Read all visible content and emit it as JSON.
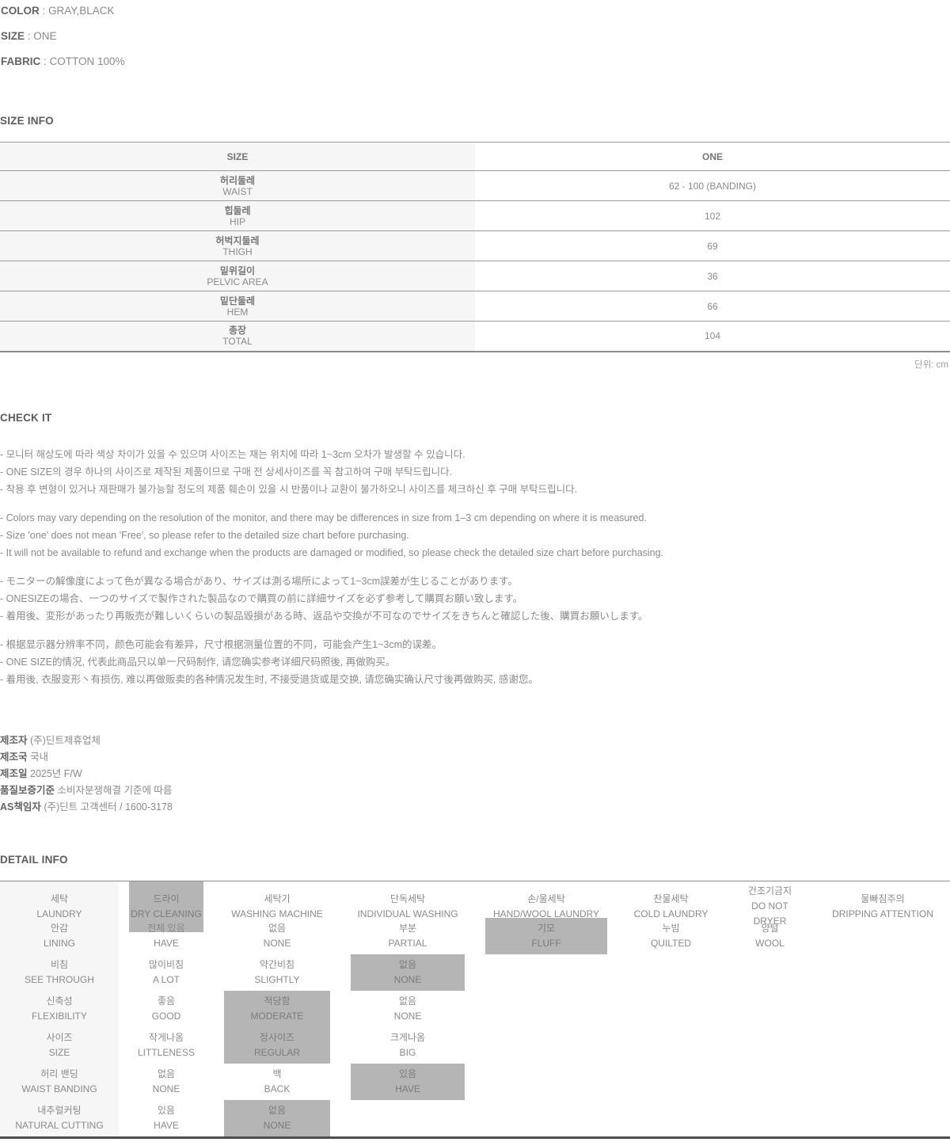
{
  "product": {
    "attributes": [
      {
        "label": "COLOR",
        "value": "GRAY,BLACK"
      },
      {
        "label": "SIZE",
        "value": "ONE"
      },
      {
        "label": "FABRIC",
        "value": "COTTON 100%"
      }
    ]
  },
  "size_info": {
    "heading": "SIZE INFO",
    "header": {
      "left": "SIZE",
      "right": "ONE"
    },
    "rows": [
      {
        "kr": "허리둘레",
        "en": "WAIST",
        "value": "62 - 100 (BANDING)"
      },
      {
        "kr": "힙둘레",
        "en": "HIP",
        "value": "102"
      },
      {
        "kr": "허벅지둘레",
        "en": "THIGH",
        "value": "69"
      },
      {
        "kr": "밑위길이",
        "en": "PELVIC AREA",
        "value": "36"
      },
      {
        "kr": "밑단둘레",
        "en": "HEM",
        "value": "66"
      },
      {
        "kr": "총장",
        "en": "TOTAL",
        "value": "104"
      }
    ],
    "unit_note": "단위: cm"
  },
  "check_it": {
    "heading": "CHECK IT",
    "blocks": [
      {
        "lines": [
          "- 모니터 해상도에 따라 색상 차이가 있을 수 있으며 사이즈는 재는 위치에 따라 1~3cm 오차가 발생할 수 있습니다.",
          "- ONE SIZE의 경우 하나의 사이즈로 제작된 제품이므로 구매 전 상세사이즈를 꼭 참고하여 구매 부탁드립니다.",
          "- 착용 후 변형이 있거나 재판매가 불가능할 정도의 제품 훼손이 있을 시 반품이나 교환이 불가하오니 사이즈를 체크하신 후 구매 부탁드립니다."
        ]
      },
      {
        "lines": [
          "- Colors may vary depending on the resolution of the monitor, and there may be differences in size from 1–3 cm depending on where it is measured.",
          "- Size 'one' does not mean 'Free', so please refer to the detailed size chart before purchasing.",
          "- It will not be available to refund and exchange when the products are damaged or modified, so please check the detailed size chart before purchasing."
        ]
      },
      {
        "lines": [
          "- モニターの解像度によって色が異なる場合があり、サイズは測る場所によって1~3cm誤差が生じることがあります。",
          "- ONESIZEの場合、一つのサイズで製作された製品なので購買の前に詳細サイズを必ず参考して購買お願い致します。",
          "- 着用後、変形があったり再販売が難しいくらいの製品毀損がある時、返品や交換が不可なのでサイズをきちんと確認した後、購買お願いします。"
        ]
      },
      {
        "lines": [
          "- 根据显示器分辨率不同，颜色可能会有差异，尺寸根据测量位置的不同，可能会产生1~3cm的误差。",
          "- ONE SIZE的情况, 代表此商品只以单一尺码制作, 请您确实参考详细尺码照後, 再做购买。",
          "- 着用後, 衣服变形丶有损伤, 难以再做贩卖的各种情况发生时, 不接受退货或是交换, 请您确实确认尺寸後再做购买, 感谢您。"
        ]
      }
    ]
  },
  "manufacturer": {
    "lines": [
      {
        "label": "제조자",
        "value": "(주)딘트제휴업체"
      },
      {
        "label": "제조국",
        "value": "국내"
      },
      {
        "label": "제조일",
        "value": "2025년 F/W"
      },
      {
        "label": "품질보증기준",
        "value": "소비자분쟁해결 기준에 따름"
      },
      {
        "label": "AS책임자",
        "value": "(주)딘트 고객센터 / 1600-3178"
      }
    ]
  },
  "detail_info": {
    "heading": "DETAIL INFO",
    "rows": [
      {
        "label_kr": "세탁",
        "label_en": "LAUNDRY",
        "options": [
          {
            "kr": "드라이",
            "en": "DRY CLEANING",
            "selected": true
          },
          {
            "kr": "세탁기",
            "en": "WASHING MACHINE",
            "selected": false
          },
          {
            "kr": "단독세탁",
            "en": "INDIVIDUAL WASHING",
            "selected": false
          },
          {
            "kr": "손/울세탁",
            "en": "HAND/WOOL LAUNDRY",
            "selected": false
          },
          {
            "kr": "찬물세탁",
            "en": "COLD LAUNDRY",
            "selected": false
          },
          {
            "kr": "건조기금지",
            "en": "DO NOT DRYER",
            "selected": false
          },
          {
            "kr": "물빠짐주의",
            "en": "DRIPPING ATTENTION",
            "selected": false
          }
        ]
      },
      {
        "label_kr": "안감",
        "label_en": "LINING",
        "options": [
          {
            "kr": "전체 있음",
            "en": "HAVE",
            "selected": false
          },
          {
            "kr": "없음",
            "en": "NONE",
            "selected": false
          },
          {
            "kr": "부분",
            "en": "PARTIAL",
            "selected": false
          },
          {
            "kr": "기모",
            "en": "FLUFF",
            "selected": true
          },
          {
            "kr": "누빔",
            "en": "QUILTED",
            "selected": false
          },
          {
            "kr": "양털",
            "en": "WOOL",
            "selected": false
          }
        ]
      },
      {
        "label_kr": "비침",
        "label_en": "SEE THROUGH",
        "options": [
          {
            "kr": "많이비침",
            "en": "A LOT",
            "selected": false
          },
          {
            "kr": "약간비침",
            "en": "SLIGHTLY",
            "selected": false
          },
          {
            "kr": "없음",
            "en": "NONE",
            "selected": true
          }
        ]
      },
      {
        "label_kr": "신축성",
        "label_en": "FLEXIBILITY",
        "options": [
          {
            "kr": "좋음",
            "en": "GOOD",
            "selected": false
          },
          {
            "kr": "적당함",
            "en": "MODERATE",
            "selected": true
          },
          {
            "kr": "없음",
            "en": "NONE",
            "selected": false
          }
        ]
      },
      {
        "label_kr": "사이즈",
        "label_en": "SIZE",
        "options": [
          {
            "kr": "작게나옴",
            "en": "LITTLENESS",
            "selected": false
          },
          {
            "kr": "정사이즈",
            "en": "REGULAR",
            "selected": true
          },
          {
            "kr": "크게나옴",
            "en": "BIG",
            "selected": false
          }
        ]
      },
      {
        "label_kr": "허리 밴딩",
        "label_en": "WAIST BANDING",
        "options": [
          {
            "kr": "없음",
            "en": "NONE",
            "selected": false
          },
          {
            "kr": "백",
            "en": "BACK",
            "selected": false
          },
          {
            "kr": "있음",
            "en": "HAVE",
            "selected": true
          }
        ]
      },
      {
        "label_kr": "내추럴커팅",
        "label_en": "NATURAL CUTTING",
        "options": [
          {
            "kr": "있음",
            "en": "HAVE",
            "selected": false
          },
          {
            "kr": "없음",
            "en": "NONE",
            "selected": true
          }
        ]
      }
    ]
  }
}
